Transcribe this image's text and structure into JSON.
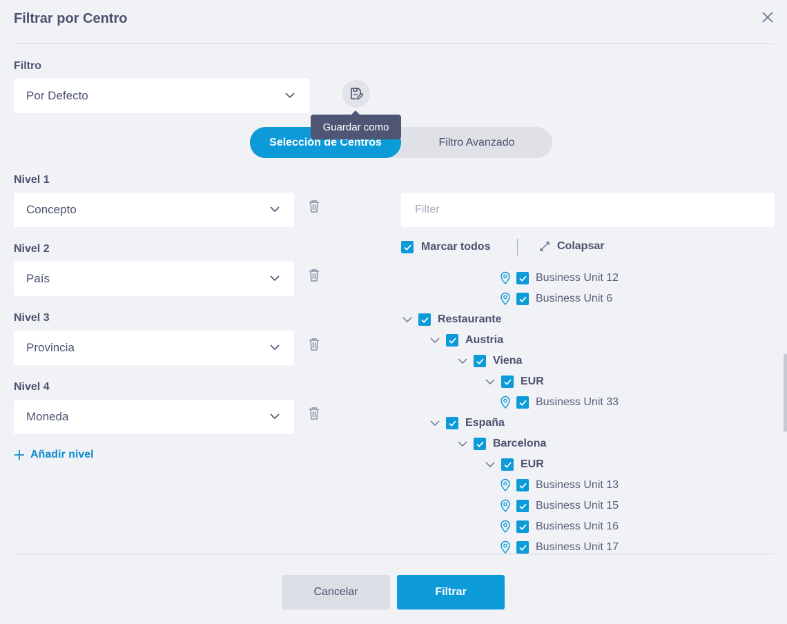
{
  "dialog": {
    "title": "Filtrar por Centro"
  },
  "filter": {
    "label": "Filtro",
    "value": "Por Defecto",
    "save_tooltip": "Guardar como"
  },
  "tabs": {
    "selection": "Selección de Centros",
    "advanced": "Filtro Avanzado"
  },
  "levels": [
    {
      "label": "Nivel 1",
      "value": "Concepto"
    },
    {
      "label": "Nivel 2",
      "value": "País"
    },
    {
      "label": "Nivel 3",
      "value": "Provincia"
    },
    {
      "label": "Nivel 4",
      "value": "Moneda"
    }
  ],
  "add_level": "Añadir nivel",
  "tree": {
    "search_placeholder": "Filter",
    "mark_all": "Marcar todos",
    "collapse": "Colapsar",
    "items": [
      {
        "text": "Business Unit 12",
        "type": "leaf",
        "depth": 4,
        "checked": true
      },
      {
        "text": "Business Unit 6",
        "type": "leaf",
        "depth": 4,
        "checked": true
      },
      {
        "text": "Restaurante",
        "type": "node",
        "depth": 0,
        "checked": true,
        "expanded": true
      },
      {
        "text": "Austria",
        "type": "node",
        "depth": 1,
        "checked": true,
        "expanded": true
      },
      {
        "text": "Viena",
        "type": "node",
        "depth": 2,
        "checked": true,
        "expanded": true
      },
      {
        "text": "EUR",
        "type": "node",
        "depth": 3,
        "checked": true,
        "expanded": true
      },
      {
        "text": "Business Unit 33",
        "type": "leaf",
        "depth": 4,
        "checked": true
      },
      {
        "text": "España",
        "type": "node",
        "depth": 1,
        "checked": true,
        "expanded": true
      },
      {
        "text": "Barcelona",
        "type": "node",
        "depth": 2,
        "checked": true,
        "expanded": true
      },
      {
        "text": "EUR",
        "type": "node",
        "depth": 3,
        "checked": true,
        "expanded": true
      },
      {
        "text": "Business Unit 13",
        "type": "leaf",
        "depth": 4,
        "checked": true
      },
      {
        "text": "Business Unit 15",
        "type": "leaf",
        "depth": 4,
        "checked": true
      },
      {
        "text": "Business Unit 16",
        "type": "leaf",
        "depth": 4,
        "checked": true
      },
      {
        "text": "Business Unit 17",
        "type": "leaf",
        "depth": 4,
        "checked": true
      }
    ]
  },
  "footer": {
    "cancel": "Cancelar",
    "apply": "Filtrar"
  },
  "colors": {
    "accent": "#0d9ad8",
    "link": "#0d8ccf",
    "tooltip_bg": "#4f5673",
    "page_bg": "#f1f2f5"
  },
  "icons": [
    "close-icon",
    "chevron-down-icon",
    "save-as-icon",
    "trash-icon",
    "plus-icon",
    "checkbox-checked-icon",
    "map-pin-icon",
    "collapse-arrows-icon"
  ]
}
